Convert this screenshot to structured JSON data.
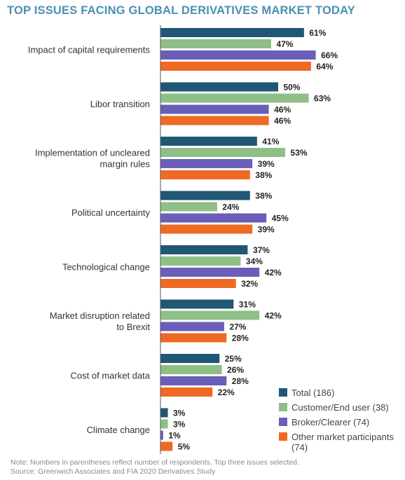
{
  "title": "TOP ISSUES FACING GLOBAL DERIVATIVES MARKET TODAY",
  "note": "Note: Numbers in parentheses reflect number of respondents. Top three issues selected.",
  "source": "Source: Greenwich Associates and FIA 2020 Derivatives Study",
  "chart_data": {
    "type": "bar",
    "orientation": "horizontal",
    "title": "TOP ISSUES FACING GLOBAL DERIVATIVES MARKET TODAY",
    "categories": [
      "Impact of capital requirements",
      "Libor transition",
      "Implementation of uncleared margin rules",
      "Political uncertainty",
      "Technological change",
      "Market disruption related to Brexit",
      "Cost of market data",
      "Climate change"
    ],
    "category_lines": [
      [
        "Impact of capital requirements"
      ],
      [
        "Libor transition"
      ],
      [
        "Implementation of uncleared",
        "margin rules"
      ],
      [
        "Political uncertainty"
      ],
      [
        "Technological change"
      ],
      [
        "Market disruption related",
        "to Brexit"
      ],
      [
        "Cost of market data"
      ],
      [
        "Climate change"
      ]
    ],
    "series": [
      {
        "name": "Total (186)",
        "color": "#1f5775",
        "values": [
          61,
          50,
          41,
          38,
          37,
          31,
          25,
          3
        ]
      },
      {
        "name": "Customer/End user (38)",
        "color": "#8fbf87",
        "values": [
          47,
          63,
          53,
          24,
          34,
          42,
          26,
          3
        ]
      },
      {
        "name": "Broker/Clearer (74)",
        "color": "#6a5fb8",
        "values": [
          66,
          46,
          39,
          45,
          42,
          27,
          28,
          1
        ]
      },
      {
        "name": "Other market participants (74)",
        "color": "#ee6a24",
        "values": [
          64,
          46,
          38,
          39,
          32,
          28,
          22,
          5
        ]
      }
    ],
    "value_suffix": "%",
    "xlim": [
      0,
      100
    ],
    "grid": false,
    "legend_position": "bottom-right"
  }
}
